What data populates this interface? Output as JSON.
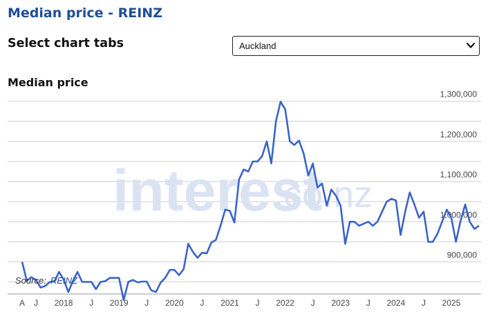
{
  "header": {
    "title": "Median price - REINZ"
  },
  "controls": {
    "tabs_label": "Select chart tabs",
    "region_select": {
      "value": "Auckland"
    }
  },
  "watermark": {
    "text": "interest",
    "suffix": ".co.nz"
  },
  "colors": {
    "title": "#1f4e96",
    "line": "#3a63c8",
    "grid": "#cfcfcf",
    "watermark": "#dbe3f3"
  },
  "icons": {
    "select_arrow": "chevron-down-icon"
  },
  "chart_data": {
    "type": "line",
    "title": "Median price",
    "source_label": "Source:",
    "source_name": "REINZ",
    "xlabel": "",
    "ylabel": "",
    "ylim": [
      820000,
      1315000
    ],
    "yticks": [
      {
        "value": 900000,
        "label": "900,000"
      },
      {
        "value": 1000000,
        "label": "1,000,000"
      },
      {
        "value": 1100000,
        "label": "1,100,000"
      },
      {
        "value": 1200000,
        "label": "1,200,000"
      },
      {
        "value": 1300000,
        "label": "1,300,000"
      }
    ],
    "xticks": [
      {
        "index": 0,
        "label": "A"
      },
      {
        "index": 3,
        "label": "J"
      },
      {
        "index": 9,
        "label": "2018"
      },
      {
        "index": 15,
        "label": "J"
      },
      {
        "index": 21,
        "label": "2019"
      },
      {
        "index": 27,
        "label": "J"
      },
      {
        "index": 33,
        "label": "2020"
      },
      {
        "index": 39,
        "label": "J"
      },
      {
        "index": 45,
        "label": "2021"
      },
      {
        "index": 51,
        "label": "J"
      },
      {
        "index": 57,
        "label": "2022"
      },
      {
        "index": 63,
        "label": "J"
      },
      {
        "index": 69,
        "label": "2023"
      },
      {
        "index": 75,
        "label": "J"
      },
      {
        "index": 81,
        "label": "2024"
      },
      {
        "index": 87,
        "label": "J"
      },
      {
        "index": 93,
        "label": "2025"
      }
    ],
    "series": [
      {
        "values": [
          900000,
          853000,
          862000,
          855000,
          836000,
          840000,
          850000,
          851000,
          875000,
          856000,
          825000,
          852000,
          875000,
          850000,
          850000,
          850000,
          832000,
          850000,
          852000,
          860000,
          860000,
          860000,
          805000,
          850000,
          855000,
          849000,
          851000,
          851000,
          829000,
          825000,
          848000,
          860000,
          880000,
          880000,
          867000,
          882000,
          945000,
          925000,
          910000,
          923000,
          921000,
          948000,
          955000,
          990000,
          1030000,
          1027000,
          998000,
          1105000,
          1130000,
          1125000,
          1150000,
          1150000,
          1163000,
          1200000,
          1145000,
          1250000,
          1299000,
          1280000,
          1200000,
          1191000,
          1202000,
          1170000,
          1115000,
          1145000,
          1085000,
          1095000,
          1040000,
          1080000,
          1065000,
          1040000,
          945000,
          1000000,
          1000000,
          990000,
          995000,
          1000000,
          990000,
          1000000,
          1025000,
          1050000,
          1057000,
          1053000,
          967000,
          1025000,
          1073000,
          1043000,
          1010000,
          1025000,
          950000,
          950000,
          970000,
          1000000,
          1030000,
          1010000,
          950000,
          1002000,
          1043000,
          1000000,
          982000,
          990000
        ]
      }
    ]
  }
}
